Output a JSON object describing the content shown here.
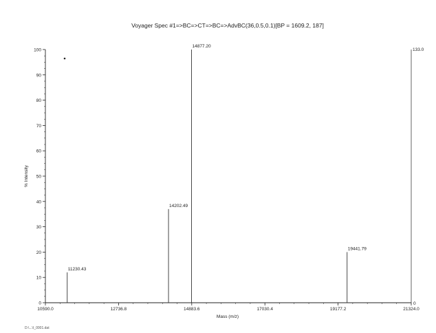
{
  "chart_data": {
    "type": "bar",
    "title": "Voyager Spec #1=>BC=>CT=>BC=>AdvBC(36,0.5,0.1)[BP = 1609.2, 187]",
    "xlabel": "Mass (m/z)",
    "ylabel": "% Intensity",
    "xlim": [
      10590.0,
      21324.0
    ],
    "ylim": [
      0,
      100
    ],
    "x_ticks": [
      10590.0,
      12736.8,
      14883.6,
      17030.4,
      19177.2,
      21324.0
    ],
    "x_tick_labels": [
      "10590.0",
      "12736.8",
      "14883.6",
      "17030.4",
      "19177.2",
      "21324.0"
    ],
    "y_ticks": [
      0,
      10,
      20,
      30,
      40,
      50,
      60,
      70,
      80,
      90,
      100
    ],
    "y_tick_labels": [
      "0",
      "10",
      "20",
      "30",
      "40",
      "50",
      "60",
      "70",
      "80",
      "90",
      "100"
    ],
    "right_axis": {
      "top_label": "133.0",
      "bottom_label": "0"
    },
    "grid": false,
    "peaks": [
      {
        "x": 11230.43,
        "y": 12,
        "label": "11230.43"
      },
      {
        "x": 14202.49,
        "y": 37,
        "label": "14202.49"
      },
      {
        "x": 14877.2,
        "y": 100,
        "label": "14877.20"
      },
      {
        "x": 19441.79,
        "y": 20,
        "label": "19441.79"
      }
    ]
  },
  "footer": {
    "file_line": "D:\\...\\I_0001.dat",
    "acquired_line": ""
  }
}
